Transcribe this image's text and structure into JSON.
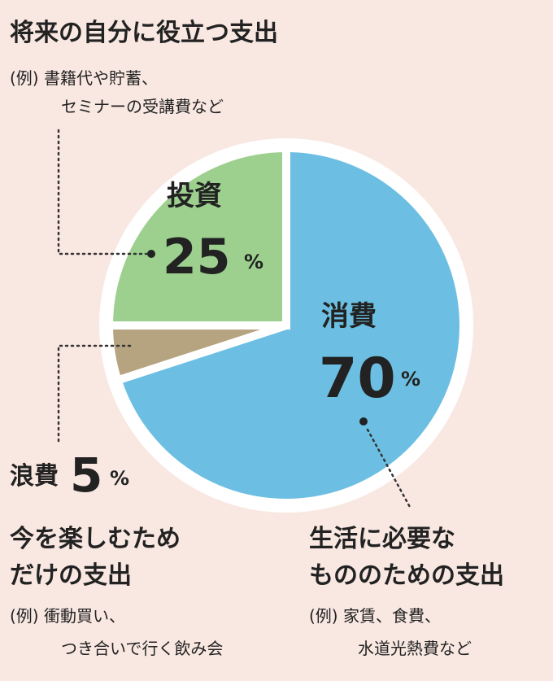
{
  "chart_data": {
    "type": "pie",
    "categories": [
      "消費",
      "浪費",
      "投資"
    ],
    "values": [
      70,
      5,
      25
    ],
    "colors": [
      "#6cbfe2",
      "#b6a481",
      "#9dd08f"
    ],
    "unit": "%",
    "annotations": [
      {
        "lines": [
          "生活に必要な",
          "もののための支出"
        ],
        "example": [
          "(例) 家賃、食費、",
          "水道光熱費など"
        ]
      },
      {
        "lines": [
          "今を楽しむため",
          "だけの支出"
        ],
        "example": [
          "(例) 衝動買い、",
          "つき合いで行く飲み会"
        ]
      },
      {
        "lines": [
          "将来の自分に役立つ支出"
        ],
        "example": [
          "(例) 書籍代や貯蓄、",
          "セミナーの受講費など"
        ]
      }
    ]
  }
}
